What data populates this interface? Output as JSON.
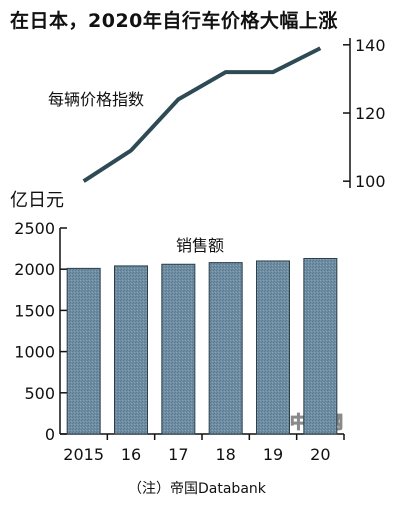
{
  "title": "在日本，2020年自行车价格大幅上涨",
  "note": "（注）帝国Databank",
  "watermark": "日经中文网",
  "chart_data": [
    {
      "type": "line",
      "label": "每辆价格指数",
      "x": [
        "2015",
        "16",
        "17",
        "18",
        "19",
        "20"
      ],
      "values": [
        100,
        109,
        124,
        132,
        132,
        139
      ],
      "y_axis_side": "right",
      "ylim": [
        98,
        142
      ],
      "yticks": [
        100,
        120,
        140
      ],
      "color": "#2e4a55"
    },
    {
      "type": "bar",
      "label": "销售额",
      "unit": "亿日元",
      "categories": [
        "2015",
        "16",
        "17",
        "18",
        "19",
        "20"
      ],
      "values": [
        2010,
        2040,
        2060,
        2080,
        2100,
        2130
      ],
      "ylim": [
        0,
        2500
      ],
      "yticks": [
        0,
        500,
        1000,
        1500,
        2000,
        2500
      ],
      "color": "#6f8ea3"
    }
  ]
}
